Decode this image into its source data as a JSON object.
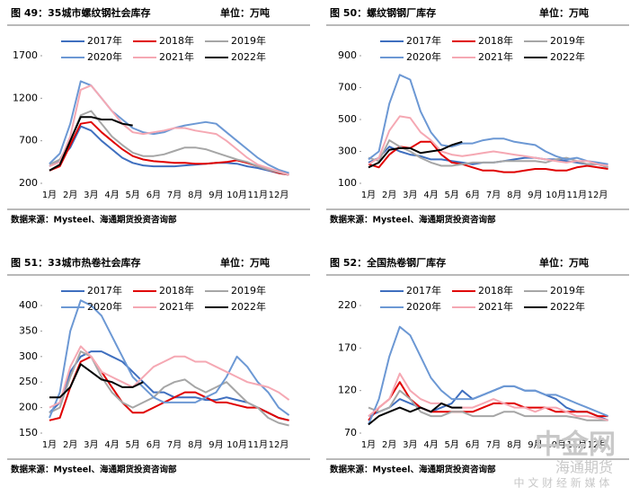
{
  "watermark": {
    "logo": "中金网",
    "brand": "海通期货",
    "slogan": "中 文 财 经 新 媒 体"
  },
  "chart_data": [
    {
      "type": "line",
      "title": "图 49：35城市螺纹钢社会库存",
      "unit": "单位：万吨",
      "source": "数据来源：Mysteel、海通期货投资咨询部",
      "categories": [
        "1月",
        null,
        "2月",
        null,
        "3月",
        null,
        "4月",
        null,
        "5月",
        null,
        "6月",
        null,
        "7月",
        null,
        "8月",
        null,
        "9月",
        null,
        "10月",
        null,
        "11月",
        null,
        "12月",
        null
      ],
      "ylim": [
        200,
        1700
      ],
      "yticks": [
        200,
        700,
        1200,
        1700
      ],
      "series": [
        {
          "name": "2017年",
          "color": "#3f6fbf",
          "values": [
            400,
            480,
            620,
            870,
            820,
            700,
            600,
            500,
            440,
            410,
            400,
            400,
            400,
            410,
            420,
            430,
            440,
            440,
            430,
            400,
            380,
            350,
            320,
            300
          ]
        },
        {
          "name": "2018年",
          "color": "#e00000",
          "values": [
            350,
            400,
            650,
            900,
            920,
            800,
            700,
            600,
            520,
            480,
            460,
            450,
            440,
            440,
            430,
            430,
            440,
            450,
            470,
            440,
            400,
            360,
            320,
            300
          ]
        },
        {
          "name": "2019年",
          "color": "#a6a6a6",
          "values": [
            420,
            480,
            700,
            1000,
            1050,
            900,
            750,
            650,
            560,
            520,
            520,
            540,
            580,
            620,
            620,
            600,
            560,
            520,
            480,
            450,
            400,
            360,
            330,
            300
          ]
        },
        {
          "name": "2020年",
          "color": "#6c98d4",
          "values": [
            430,
            550,
            900,
            1400,
            1350,
            1200,
            1050,
            950,
            850,
            800,
            780,
            800,
            850,
            880,
            900,
            920,
            900,
            800,
            700,
            600,
            500,
            420,
            360,
            320
          ]
        },
        {
          "name": "2021年",
          "color": "#f5a8b3",
          "values": [
            400,
            450,
            750,
            1300,
            1350,
            1200,
            1050,
            900,
            800,
            780,
            800,
            820,
            850,
            850,
            820,
            800,
            780,
            700,
            600,
            500,
            420,
            380,
            340,
            300
          ]
        },
        {
          "name": "2022年",
          "color": "#000000",
          "values": [
            350,
            420,
            700,
            980,
            980,
            950,
            950,
            900,
            880,
            null,
            null,
            null,
            null,
            null,
            null,
            null,
            null,
            null,
            null,
            null,
            null,
            null,
            null,
            null
          ]
        }
      ]
    },
    {
      "type": "line",
      "title": "图 50：螺纹钢钢厂库存",
      "unit": "单位：万吨",
      "source": "数据来源：Mysteel、海通期货投资咨询部",
      "categories": [
        "1月",
        null,
        "2月",
        null,
        "3月",
        null,
        "4月",
        null,
        "5月",
        null,
        "6月",
        null,
        "7月",
        null,
        "8月",
        null,
        "9月",
        null,
        "10月",
        null,
        "11月",
        null,
        "12月",
        null
      ],
      "ylim": [
        100,
        900
      ],
      "yticks": [
        100,
        300,
        500,
        700,
        900
      ],
      "series": [
        {
          "name": "2017年",
          "color": "#3f6fbf",
          "values": [
            230,
            260,
            330,
            300,
            280,
            270,
            250,
            250,
            240,
            230,
            220,
            230,
            230,
            240,
            250,
            260,
            260,
            250,
            250,
            240,
            230,
            220,
            220,
            200
          ]
        },
        {
          "name": "2018年",
          "color": "#e00000",
          "values": [
            220,
            200,
            280,
            330,
            320,
            360,
            360,
            280,
            230,
            220,
            200,
            180,
            180,
            170,
            170,
            180,
            190,
            190,
            180,
            180,
            200,
            210,
            200,
            190
          ]
        },
        {
          "name": "2019年",
          "color": "#a6a6a6",
          "values": [
            260,
            240,
            370,
            330,
            300,
            260,
            230,
            210,
            210,
            220,
            230,
            230,
            230,
            240,
            240,
            240,
            240,
            230,
            250,
            260,
            240,
            220,
            220,
            200
          ]
        },
        {
          "name": "2020年",
          "color": "#6c98d4",
          "values": [
            250,
            300,
            600,
            780,
            750,
            550,
            420,
            340,
            330,
            350,
            350,
            370,
            380,
            380,
            360,
            350,
            340,
            300,
            270,
            250,
            260,
            240,
            230,
            220
          ]
        },
        {
          "name": "2021年",
          "color": "#f5a8b3",
          "values": [
            220,
            260,
            430,
            520,
            510,
            420,
            370,
            300,
            280,
            270,
            280,
            290,
            300,
            290,
            280,
            270,
            260,
            250,
            240,
            230,
            240,
            240,
            220,
            210
          ]
        },
        {
          "name": "2022年",
          "color": "#000000",
          "values": [
            200,
            230,
            310,
            320,
            320,
            290,
            300,
            310,
            340,
            360,
            null,
            null,
            null,
            null,
            null,
            null,
            null,
            null,
            null,
            null,
            null,
            null,
            null,
            null
          ]
        }
      ]
    },
    {
      "type": "line",
      "title": "图 51：33城市热卷社会库存",
      "unit": "单位：万吨",
      "source": "数据来源：Mysteel、海通期货投资咨询部",
      "categories": [
        "1月",
        null,
        "2月",
        null,
        "3月",
        null,
        "4月",
        null,
        "5月",
        null,
        "6月",
        null,
        "7月",
        null,
        "8月",
        null,
        "9月",
        null,
        "10月",
        null,
        "11月",
        null,
        "12月",
        null
      ],
      "ylim": [
        150,
        400
      ],
      "yticks": [
        150,
        200,
        250,
        300,
        350,
        400
      ],
      "series": [
        {
          "name": "2017年",
          "color": "#3f6fbf",
          "values": [
            190,
            210,
            270,
            300,
            310,
            310,
            300,
            290,
            270,
            250,
            230,
            230,
            220,
            220,
            220,
            215,
            215,
            220,
            215,
            210,
            200,
            190,
            180,
            175
          ]
        },
        {
          "name": "2018年",
          "color": "#e00000",
          "values": [
            175,
            180,
            240,
            290,
            300,
            270,
            240,
            210,
            190,
            190,
            200,
            210,
            220,
            230,
            230,
            220,
            210,
            210,
            205,
            200,
            200,
            190,
            180,
            175
          ]
        },
        {
          "name": "2019年",
          "color": "#a6a6a6",
          "values": [
            190,
            200,
            260,
            310,
            300,
            260,
            230,
            210,
            200,
            210,
            220,
            240,
            250,
            255,
            240,
            230,
            240,
            250,
            230,
            210,
            200,
            180,
            170,
            165
          ]
        },
        {
          "name": "2020年",
          "color": "#6c98d4",
          "values": [
            180,
            230,
            350,
            410,
            400,
            380,
            340,
            300,
            260,
            240,
            220,
            210,
            210,
            210,
            210,
            220,
            230,
            260,
            300,
            280,
            250,
            230,
            200,
            185
          ]
        },
        {
          "name": "2021年",
          "color": "#f5a8b3",
          "values": [
            200,
            210,
            280,
            320,
            300,
            270,
            260,
            250,
            240,
            260,
            280,
            290,
            300,
            300,
            290,
            290,
            280,
            270,
            260,
            250,
            245,
            240,
            230,
            215
          ]
        },
        {
          "name": "2022年",
          "color": "#000000",
          "values": [
            220,
            220,
            240,
            285,
            270,
            255,
            250,
            240,
            240,
            250,
            null,
            null,
            null,
            null,
            null,
            null,
            null,
            null,
            null,
            null,
            null,
            null,
            null,
            null
          ]
        }
      ]
    },
    {
      "type": "line",
      "title": "图 52：全国热卷钢厂库存",
      "unit": "单位：万吨",
      "source": "数据来源：Mysteel、海通期货投资咨询部",
      "categories": [
        "1月",
        null,
        "2月",
        null,
        "3月",
        null,
        "4月",
        null,
        "5月",
        null,
        "6月",
        null,
        "7月",
        null,
        "8月",
        null,
        "9月",
        null,
        "10月",
        null,
        "11月",
        null,
        "12月",
        null
      ],
      "ylim": [
        70,
        220
      ],
      "yticks": [
        70,
        120,
        170,
        220
      ],
      "series": [
        {
          "name": "2017年",
          "color": "#3f6fbf",
          "values": [
            90,
            95,
            100,
            110,
            105,
            100,
            95,
            100,
            105,
            120,
            110,
            115,
            120,
            125,
            125,
            120,
            120,
            115,
            110,
            100,
            95,
            95,
            90,
            85
          ]
        },
        {
          "name": "2018年",
          "color": "#e00000",
          "values": [
            85,
            100,
            110,
            130,
            110,
            100,
            95,
            95,
            95,
            95,
            95,
            100,
            105,
            105,
            105,
            100,
            100,
            100,
            95,
            95,
            95,
            95,
            90,
            90
          ]
        },
        {
          "name": "2019年",
          "color": "#a6a6a6",
          "values": [
            100,
            95,
            100,
            120,
            110,
            95,
            90,
            90,
            95,
            95,
            90,
            90,
            90,
            95,
            95,
            90,
            90,
            90,
            90,
            90,
            88,
            85,
            85,
            85
          ]
        },
        {
          "name": "2020年",
          "color": "#6c98d4",
          "values": [
            80,
            110,
            160,
            195,
            185,
            160,
            135,
            120,
            110,
            110,
            110,
            115,
            120,
            125,
            125,
            120,
            120,
            115,
            115,
            110,
            105,
            100,
            95,
            90
          ]
        },
        {
          "name": "2021年",
          "color": "#f5a8b3",
          "values": [
            90,
            100,
            110,
            140,
            120,
            110,
            105,
            105,
            100,
            100,
            100,
            105,
            110,
            105,
            100,
            100,
            95,
            100,
            100,
            95,
            90,
            90,
            88,
            85
          ]
        },
        {
          "name": "2022年",
          "color": "#000000",
          "values": [
            80,
            90,
            95,
            100,
            95,
            100,
            95,
            105,
            100,
            100,
            null,
            null,
            null,
            null,
            null,
            null,
            null,
            null,
            null,
            null,
            null,
            null,
            null,
            null
          ]
        }
      ]
    }
  ]
}
